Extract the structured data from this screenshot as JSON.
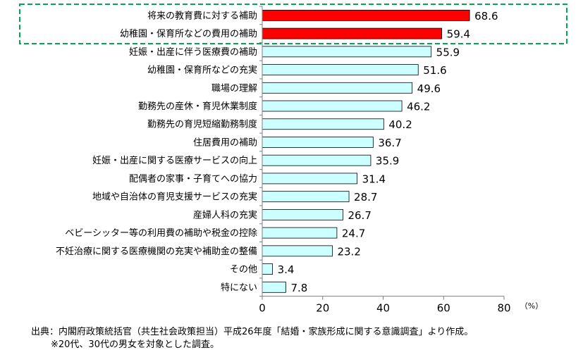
{
  "chart_data": {
    "type": "bar",
    "orientation": "horizontal",
    "categories": [
      "将来の教育費に対する補助",
      "幼稚園・保育所などの費用の補助",
      "妊娠・出産に伴う医療費の補助",
      "幼稚園・保育所などの充実",
      "職場の理解",
      "勤務先の産休・育児休業制度",
      "勤務先の育児短縮勤務制度",
      "住居費用の補助",
      "妊娠・出産に関する医療サービスの向上",
      "配偶者の家事・子育てへの協力",
      "地域や自治体の育児支援サービスの充実",
      "産婦人科の充実",
      "ベビーシッター等の利用費の補助や税金の控除",
      "不妊治療に関する医療機関の充実や補助金の整備",
      "その他",
      "特にない"
    ],
    "values": [
      68.6,
      59.4,
      55.9,
      51.6,
      49.6,
      46.2,
      40.2,
      36.7,
      35.9,
      31.4,
      28.7,
      26.7,
      24.7,
      23.2,
      3.4,
      7.8
    ],
    "value_labels": [
      "68.6",
      "59.4",
      "55.9",
      "51.6",
      "49.6",
      "46.2",
      "40.2",
      "36.7",
      "35.9",
      "31.4",
      "28.7",
      "26.7",
      "24.7",
      "23.2",
      "3.4",
      "7.8"
    ],
    "highlighted_count": 2,
    "xlim": [
      0,
      80
    ],
    "xticks": [
      "0",
      "20",
      "40",
      "60",
      "80"
    ],
    "unit": "（%）",
    "grid": false,
    "colors": {
      "highlight": "#ff0000",
      "normal": "#ccffff",
      "bar_stroke": "#000000",
      "frame": "#00a650"
    }
  },
  "source": {
    "line1": "出典：内閣府政策統括官（共生社会政策担当）平成26年度「結婚・家族形成に関する意識調査」より作成。",
    "line2": "※20代、30代の男女を対象とした調査。"
  }
}
